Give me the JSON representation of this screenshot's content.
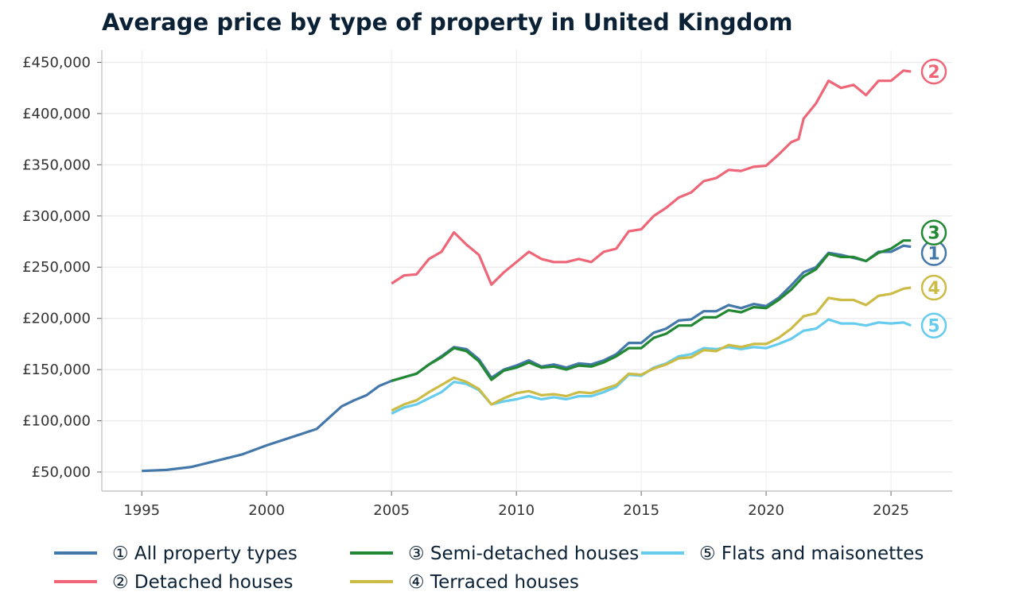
{
  "chart_data": {
    "type": "line",
    "title": "Average price by type of property in United Kingdom",
    "xlabel": "",
    "ylabel": "",
    "xlim": [
      1993.4,
      2027.45
    ],
    "ylim": [
      31400,
      462000
    ],
    "grid": true,
    "legend_position": "bottom",
    "x_ticks": [
      1995,
      2000,
      2005,
      2010,
      2015,
      2020,
      2025
    ],
    "x_tick_labels": [
      "1995",
      "2000",
      "2005",
      "2010",
      "2015",
      "2020",
      "2025"
    ],
    "y_ticks": [
      50000,
      100000,
      150000,
      200000,
      250000,
      300000,
      350000,
      400000,
      450000
    ],
    "y_tick_labels": [
      "£50,000",
      "£100,000",
      "£150,000",
      "£200,000",
      "£250,000",
      "£300,000",
      "£350,000",
      "£400,000",
      "£450,000"
    ],
    "series": [
      {
        "name": "① All property types",
        "end_label": "1",
        "color": "#4477aa",
        "x": [
          1995,
          1996,
          1997,
          1998,
          1999,
          2000,
          2001,
          2002,
          2002.5,
          2003,
          2003.5,
          2004,
          2004.5,
          2005,
          2006,
          2006.5,
          2007,
          2007.5,
          2008,
          2008.5,
          2009,
          2009.5,
          2010,
          2010.5,
          2011,
          2011.5,
          2012,
          2012.5,
          2013,
          2013.5,
          2014,
          2014.5,
          2015,
          2015.5,
          2016,
          2016.5,
          2017,
          2017.5,
          2018,
          2018.5,
          2019,
          2019.5,
          2020,
          2020.5,
          2021,
          2021.5,
          2022,
          2022.5,
          2023,
          2023.5,
          2024,
          2024.5,
          2025,
          2025.5,
          2025.8
        ],
        "y": [
          51000,
          52000,
          55000,
          61000,
          67000,
          76000,
          84000,
          92000,
          103000,
          114000,
          120000,
          125000,
          134000,
          139000,
          146000,
          155000,
          163000,
          172000,
          170000,
          160000,
          142000,
          150000,
          154000,
          159000,
          153000,
          155000,
          152000,
          156000,
          155000,
          159000,
          165000,
          176000,
          176000,
          186000,
          190000,
          198000,
          199000,
          207000,
          207000,
          213000,
          210000,
          214000,
          212000,
          220000,
          232000,
          245000,
          250000,
          264000,
          262000,
          259000,
          256000,
          265000,
          265000,
          271000,
          270000
        ]
      },
      {
        "name": "② Detached houses",
        "end_label": "2",
        "color": "#ee6677",
        "x": [
          2005,
          2005.5,
          2006,
          2006.5,
          2007,
          2007.5,
          2008,
          2008.5,
          2009,
          2009.5,
          2010,
          2010.5,
          2011,
          2011.5,
          2012,
          2012.5,
          2013,
          2013.5,
          2014,
          2014.5,
          2015,
          2015.5,
          2016,
          2016.5,
          2017,
          2017.5,
          2018,
          2018.5,
          2019,
          2019.5,
          2020,
          2020.5,
          2021,
          2021.3,
          2021.5,
          2022,
          2022.5,
          2023,
          2023.5,
          2024,
          2024.5,
          2025,
          2025.5,
          2025.8
        ],
        "y": [
          234000,
          242000,
          243000,
          258000,
          265000,
          284000,
          272000,
          262000,
          233000,
          245000,
          255000,
          265000,
          258000,
          255000,
          255000,
          258000,
          255000,
          265000,
          268000,
          285000,
          287000,
          300000,
          308000,
          318000,
          323000,
          334000,
          337000,
          345000,
          344000,
          348000,
          349000,
          360000,
          372000,
          375000,
          395000,
          410000,
          432000,
          425000,
          428000,
          418000,
          432000,
          432000,
          442000,
          441000
        ]
      },
      {
        "name": "③ Semi-detached houses",
        "end_label": "3",
        "color": "#228833",
        "x": [
          2005,
          2006,
          2006.5,
          2007,
          2007.5,
          2008,
          2008.5,
          2009,
          2009.5,
          2010,
          2010.5,
          2011,
          2011.5,
          2012,
          2012.5,
          2013,
          2013.5,
          2014,
          2014.5,
          2015,
          2015.5,
          2016,
          2016.5,
          2017,
          2017.5,
          2018,
          2018.5,
          2019,
          2019.5,
          2020,
          2020.5,
          2021,
          2021.5,
          2022,
          2022.5,
          2023,
          2023.5,
          2024,
          2024.5,
          2025,
          2025.5,
          2025.8
        ],
        "y": [
          139000,
          146000,
          155000,
          162000,
          171000,
          168000,
          158000,
          140000,
          149000,
          152000,
          157000,
          152000,
          153000,
          150000,
          154000,
          153000,
          157000,
          163000,
          171000,
          171000,
          181000,
          185000,
          193000,
          193000,
          201000,
          201000,
          208000,
          206000,
          211000,
          210000,
          218000,
          228000,
          241000,
          248000,
          263000,
          260000,
          260000,
          256000,
          264000,
          268000,
          276000,
          276000
        ]
      },
      {
        "name": "④ Terraced houses",
        "end_label": "4",
        "color": "#ccbb44",
        "x": [
          2005,
          2005.5,
          2006,
          2006.5,
          2007,
          2007.5,
          2008,
          2008.5,
          2009,
          2009.5,
          2010,
          2010.5,
          2011,
          2011.5,
          2012,
          2012.5,
          2013,
          2013.5,
          2014,
          2014.5,
          2015,
          2015.5,
          2016,
          2016.5,
          2017,
          2017.5,
          2018,
          2018.5,
          2019,
          2019.5,
          2020,
          2020.5,
          2021,
          2021.5,
          2022,
          2022.5,
          2023,
          2023.5,
          2024,
          2024.5,
          2025,
          2025.5,
          2025.8
        ],
        "y": [
          110000,
          116000,
          120000,
          128000,
          135000,
          142000,
          138000,
          131000,
          116000,
          122000,
          127000,
          129000,
          125000,
          126000,
          124000,
          128000,
          127000,
          131000,
          135000,
          146000,
          145000,
          151000,
          155000,
          161000,
          162000,
          169000,
          168000,
          174000,
          172000,
          175000,
          175000,
          181000,
          190000,
          202000,
          205000,
          220000,
          218000,
          218000,
          213000,
          222000,
          224000,
          229000,
          230000
        ]
      },
      {
        "name": "⑤ Flats and maisonettes",
        "end_label": "5",
        "color": "#66ccee",
        "x": [
          2005,
          2005.5,
          2006,
          2006.5,
          2007,
          2007.5,
          2008,
          2008.5,
          2009,
          2009.5,
          2010,
          2010.5,
          2011,
          2011.5,
          2012,
          2012.5,
          2013,
          2013.5,
          2014,
          2014.5,
          2015,
          2015.5,
          2016,
          2016.5,
          2017,
          2017.5,
          2018,
          2018.5,
          2019,
          2019.5,
          2020,
          2020.5,
          2021,
          2021.5,
          2022,
          2022.5,
          2023,
          2023.5,
          2024,
          2024.5,
          2025,
          2025.5,
          2025.8
        ],
        "y": [
          107000,
          113000,
          116000,
          122000,
          128000,
          138000,
          136000,
          130000,
          116000,
          119000,
          121000,
          124000,
          121000,
          123000,
          121000,
          124000,
          124000,
          128000,
          133000,
          145000,
          144000,
          152000,
          156000,
          163000,
          165000,
          171000,
          170000,
          172000,
          170000,
          172000,
          171000,
          175000,
          180000,
          188000,
          190000,
          199000,
          195000,
          195000,
          193000,
          196000,
          195000,
          196000,
          193000
        ]
      }
    ]
  }
}
